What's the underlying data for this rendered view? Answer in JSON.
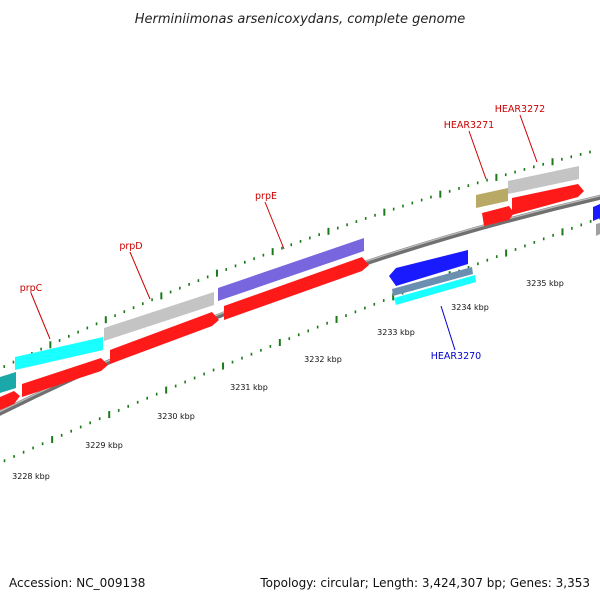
{
  "title": "Herminiimonas arsenicoxydans, complete genome",
  "footer": {
    "accession": "Accession: NC_009138",
    "stats": "Topology: circular; Length: 3,424,307 bp; Genes: 3,353"
  },
  "colors": {
    "backbone": "#8c8c8c",
    "tick": "#1a7a1a",
    "forward_label": "#cc0000",
    "reverse_label": "#0000cc",
    "cds": "#ff1a1a",
    "gene_cyan": "#1affff",
    "gene_gray": "#bdbdbd",
    "gene_purple": "#7766dd",
    "gene_olive": "#b8aa66",
    "gene_blue": "#1a1aff",
    "gene_steel": "#6b8fb0"
  },
  "axis": {
    "unit": "kbp",
    "tick_labels": [
      "3228 kbp",
      "3229 kbp",
      "3230 kbp",
      "3231 kbp",
      "3232 kbp",
      "3233 kbp",
      "3234 kbp",
      "3235 kbp"
    ]
  },
  "gene_labels": {
    "forward": [
      "prpC",
      "prpD",
      "prpE",
      "HEAR3271",
      "HEAR3272"
    ],
    "reverse": [
      "HEAR3270"
    ]
  }
}
